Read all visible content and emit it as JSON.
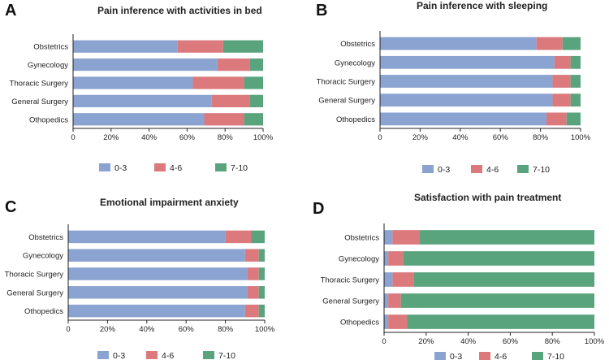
{
  "colors": {
    "c0_3": "#8aa3d1",
    "c4_6": "#db797d",
    "c7_10": "#5aa47d"
  },
  "chart_data": [
    {
      "panel": "A",
      "type": "bar",
      "orientation": "horizontal",
      "stacked": true,
      "title": "Pain inference with activities in bed",
      "categories": [
        "Obstetrics",
        "Gynecology",
        "Thoracic Surgery",
        "General Surgery",
        "Othopedics"
      ],
      "series": [
        {
          "name": "0-3",
          "values": [
            55,
            76,
            63,
            73,
            69
          ]
        },
        {
          "name": "4-6",
          "values": [
            24,
            17,
            27,
            20,
            21
          ]
        },
        {
          "name": "7-10",
          "values": [
            21,
            7,
            10,
            7,
            10
          ]
        }
      ],
      "ticks": [
        "0",
        "20%",
        "40%",
        "60%",
        "80%",
        "100%"
      ],
      "xlim": [
        0,
        100
      ],
      "legend": "bottom"
    },
    {
      "panel": "B",
      "type": "bar",
      "orientation": "horizontal",
      "stacked": true,
      "title": "Pain inference with sleeping",
      "categories": [
        "Obstetrics",
        "Gynecology",
        "Thoracic Surgery",
        "General Surgery",
        "Othopedics"
      ],
      "series": [
        {
          "name": "0-3",
          "values": [
            78,
            87,
            86,
            86,
            83
          ]
        },
        {
          "name": "4-6",
          "values": [
            13,
            8,
            9,
            9,
            10
          ]
        },
        {
          "name": "7-10",
          "values": [
            9,
            5,
            5,
            5,
            7
          ]
        }
      ],
      "ticks": [
        "0",
        "20%",
        "40%",
        "60%",
        "80%",
        "100%"
      ],
      "xlim": [
        0,
        100
      ],
      "legend": "bottom"
    },
    {
      "panel": "C",
      "type": "bar",
      "orientation": "horizontal",
      "stacked": true,
      "title": "Emotional impairment anxiety",
      "categories": [
        "Obstetrics",
        "Gynecology",
        "Thoracic Surgery",
        "General Surgery",
        "Othopedics"
      ],
      "series": [
        {
          "name": "0-3",
          "values": [
            80,
            90,
            91,
            91,
            90
          ]
        },
        {
          "name": "4-6",
          "values": [
            13,
            7,
            6,
            6,
            7
          ]
        },
        {
          "name": "7-10",
          "values": [
            7,
            3,
            3,
            3,
            3
          ]
        }
      ],
      "ticks": [
        "0",
        "20%",
        "40%",
        "60%",
        "80%",
        "100%"
      ],
      "xlim": [
        0,
        100
      ],
      "legend": "bottom"
    },
    {
      "panel": "D",
      "type": "bar",
      "orientation": "horizontal",
      "stacked": true,
      "title": "Satisfaction with pain treatment",
      "categories": [
        "Obstetrics",
        "Gynecology",
        "Thoracic Surgery",
        "General Surgery",
        "Othopedics"
      ],
      "series": [
        {
          "name": "0-3",
          "values": [
            4,
            2,
            4,
            2,
            2
          ]
        },
        {
          "name": "4-6",
          "values": [
            13,
            7,
            10,
            6,
            9
          ]
        },
        {
          "name": "7-10",
          "values": [
            83,
            91,
            86,
            92,
            89
          ]
        }
      ],
      "ticks": [
        "0",
        "20%",
        "40%",
        "60%",
        "80%",
        "100%"
      ],
      "xlim": [
        0,
        100
      ],
      "legend": "bottom"
    }
  ]
}
